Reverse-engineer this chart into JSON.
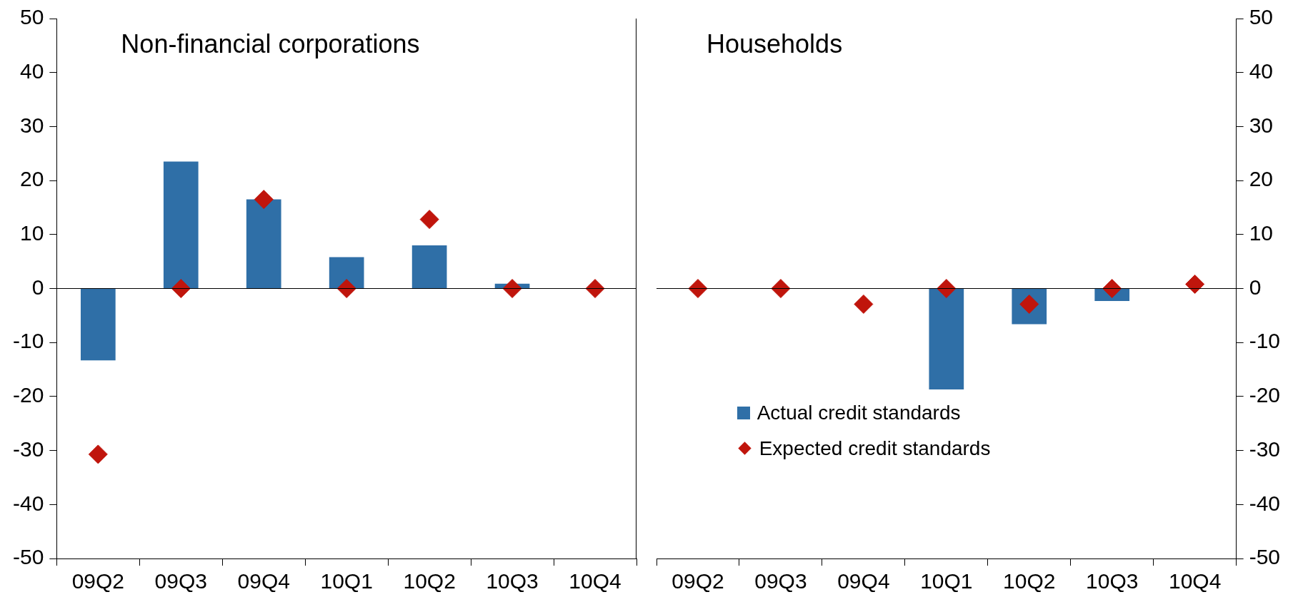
{
  "chart_data": [
    {
      "type": "bar",
      "title": "Non-financial corporations",
      "categories": [
        "09Q2",
        "09Q3",
        "09Q4",
        "10Q1",
        "10Q2",
        "10Q3",
        "10Q4"
      ],
      "ylim": [
        -50,
        50
      ],
      "yticks": [
        -50,
        -40,
        -30,
        -20,
        -10,
        0,
        10,
        20,
        30,
        40,
        50
      ],
      "marker": "diamond",
      "series": [
        {
          "color": "#2f6fa7",
          "values": [
            -13.3,
            23.5,
            16.5,
            5.8,
            8,
            0.9,
            0
          ]
        },
        {
          "type": "scatter",
          "color": "#c0150c",
          "x": [
            "09Q2",
            "09Q3",
            "09Q4",
            "10Q1",
            "10Q2",
            "10Q3",
            "10Q4"
          ],
          "values": [
            -30.7,
            0,
            16.5,
            0,
            12.8,
            0,
            0
          ]
        }
      ]
    },
    {
      "type": "bar",
      "title": "Households",
      "categories": [
        "09Q2",
        "09Q3",
        "09Q4",
        "10Q1",
        "10Q2",
        "10Q3",
        "10Q4"
      ],
      "ylim": [
        -50,
        50
      ],
      "yticks": [
        -50,
        -40,
        -30,
        -20,
        -10,
        0,
        10,
        20,
        30,
        40,
        50
      ],
      "marker": "diamond",
      "legend": "bottom",
      "series": [
        {
          "name": "Actual credit standards",
          "color": "#2f6fa7",
          "values": [
            0,
            0,
            0,
            -18.7,
            -6.6,
            -2.3,
            0
          ]
        },
        {
          "name": "Expected credit standards",
          "type": "scatter",
          "color": "#c0150c",
          "x": [
            "09Q2",
            "09Q3",
            "09Q4",
            "10Q1",
            "10Q2",
            "10Q3",
            "10Q4"
          ],
          "values": [
            0,
            0,
            -2.9,
            0,
            -2.9,
            0,
            0.8
          ]
        }
      ]
    }
  ]
}
